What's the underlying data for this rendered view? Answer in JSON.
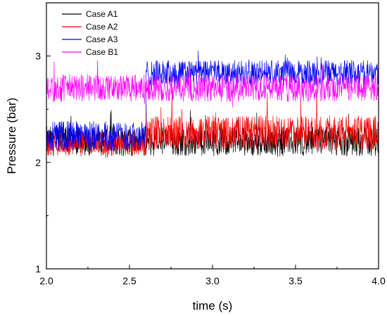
{
  "chart_data": {
    "type": "line",
    "xlabel": "time (s)",
    "ylabel": "Pressure (bar)",
    "xlim": [
      2.0,
      4.0
    ],
    "ylim": [
      1.0,
      3.5
    ],
    "xticks": [
      2.0,
      2.5,
      3.0,
      3.5,
      4.0
    ],
    "xtick_labels": [
      "2.0",
      "2.5",
      "3.0",
      "3.5",
      "4.0"
    ],
    "yticks": [
      1,
      2,
      3
    ],
    "ytick_labels": [
      "1",
      "2",
      "3"
    ],
    "legend_position": "top-left",
    "grid": false,
    "series": [
      {
        "name": "Case A1",
        "color": "#000000",
        "segments": [
          {
            "x_start": 2.0,
            "x_end": 4.0,
            "baseline": 2.2,
            "spread": 0.14,
            "spike_max": 2.5
          }
        ]
      },
      {
        "name": "Case A2",
        "color": "#ff0000",
        "segments": [
          {
            "x_start": 2.0,
            "x_end": 2.6,
            "baseline": 2.18,
            "spread": 0.12,
            "spike_max": 2.35
          },
          {
            "x_start": 2.6,
            "x_end": 4.0,
            "baseline": 2.28,
            "spread": 0.16,
            "spike_max": 2.7
          }
        ]
      },
      {
        "name": "Case A3",
        "color": "#0000ff",
        "segments": [
          {
            "x_start": 2.0,
            "x_end": 2.6,
            "baseline": 2.25,
            "spread": 0.14,
            "spike_max": 2.5
          },
          {
            "x_start": 2.6,
            "x_end": 4.0,
            "baseline": 2.84,
            "spread": 0.12,
            "spike_max": 3.05
          }
        ]
      },
      {
        "name": "Case B1",
        "color": "#ff00ff",
        "segments": [
          {
            "x_start": 2.0,
            "x_end": 4.0,
            "baseline": 2.7,
            "spread": 0.13,
            "spike_max": 3.0
          }
        ]
      }
    ]
  }
}
